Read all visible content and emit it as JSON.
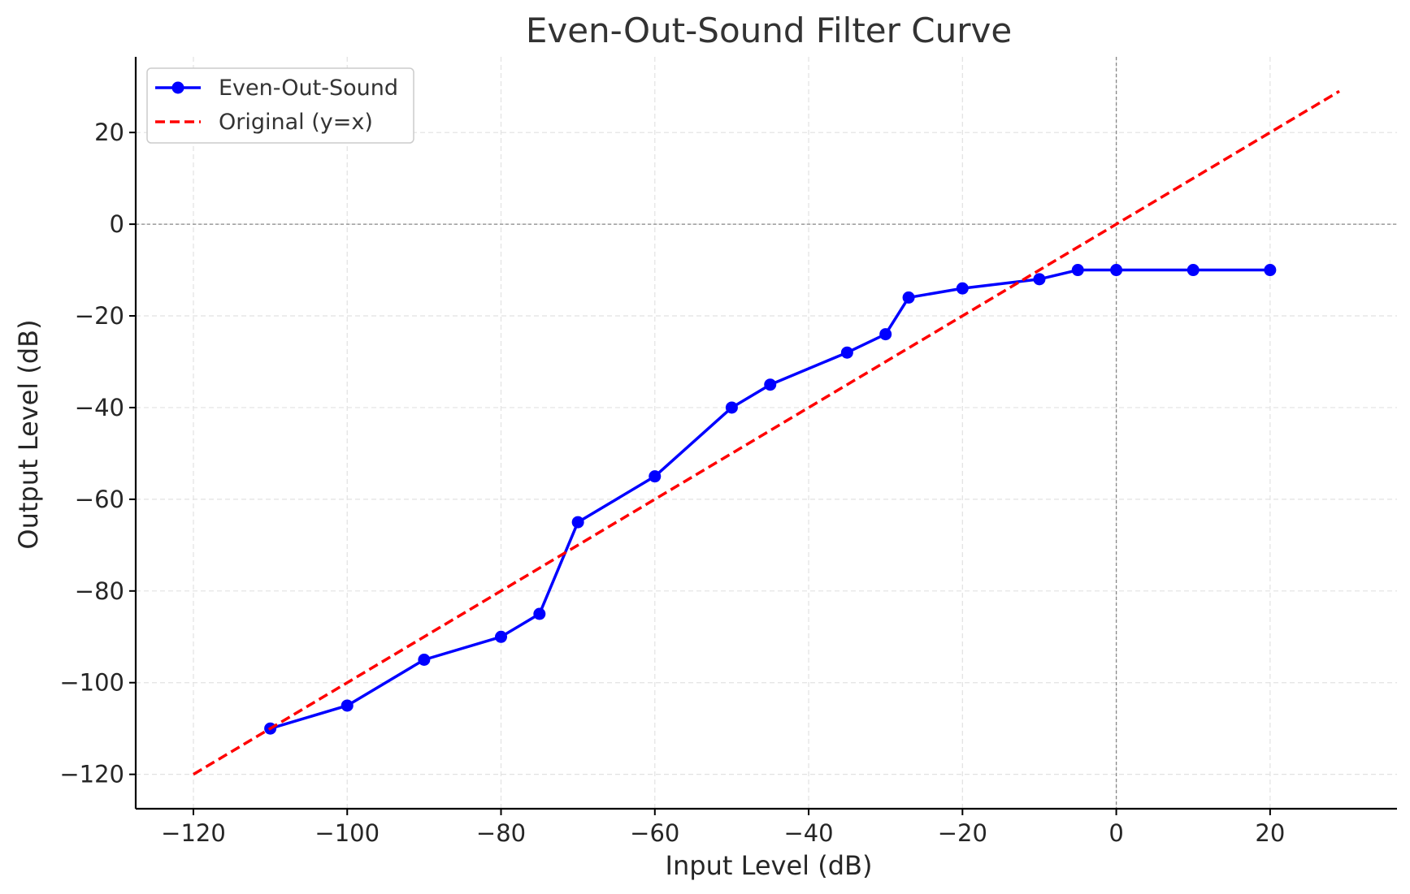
{
  "chart_data": {
    "type": "line",
    "title": "Even-Out-Sound Filter Curve",
    "xlabel": "Input Level (dB)",
    "ylabel": "Output Level (dB)",
    "xlim": [
      -127.5,
      36.5
    ],
    "ylim": [
      -127.5,
      36.5
    ],
    "xticks": [
      -120,
      -100,
      -80,
      -60,
      -40,
      -20,
      0,
      20
    ],
    "yticks": [
      -120,
      -100,
      -80,
      -60,
      -40,
      -20,
      0,
      20
    ],
    "xtick_labels": [
      "−120",
      "−100",
      "−80",
      "−60",
      "−40",
      "−20",
      "0",
      "20"
    ],
    "ytick_labels": [
      "−120",
      "−100",
      "−80",
      "−60",
      "−40",
      "−20",
      "0",
      "20"
    ],
    "grid": true,
    "reference_lines": {
      "x": 0,
      "y": 0
    },
    "legend_position": "top-left",
    "series": [
      {
        "name": "Even-Out-Sound",
        "color": "#0000ff",
        "style": "solid",
        "marker": "circle",
        "x": [
          -110,
          -100,
          -90,
          -80,
          -75,
          -70,
          -60,
          -50,
          -45,
          -35,
          -30,
          -27,
          -20,
          -10,
          -5,
          0,
          10,
          20
        ],
        "y": [
          -110,
          -105,
          -95,
          -90,
          -85,
          -65,
          -55,
          -40,
          -35,
          -28,
          -24,
          -16,
          -14,
          -12,
          -10,
          -10,
          -10,
          -10
        ]
      },
      {
        "name": "Original (y=x)",
        "color": "#ff0000",
        "style": "dashed",
        "marker": "none",
        "x": [
          -120,
          29
        ],
        "y": [
          -120,
          29
        ]
      }
    ]
  }
}
